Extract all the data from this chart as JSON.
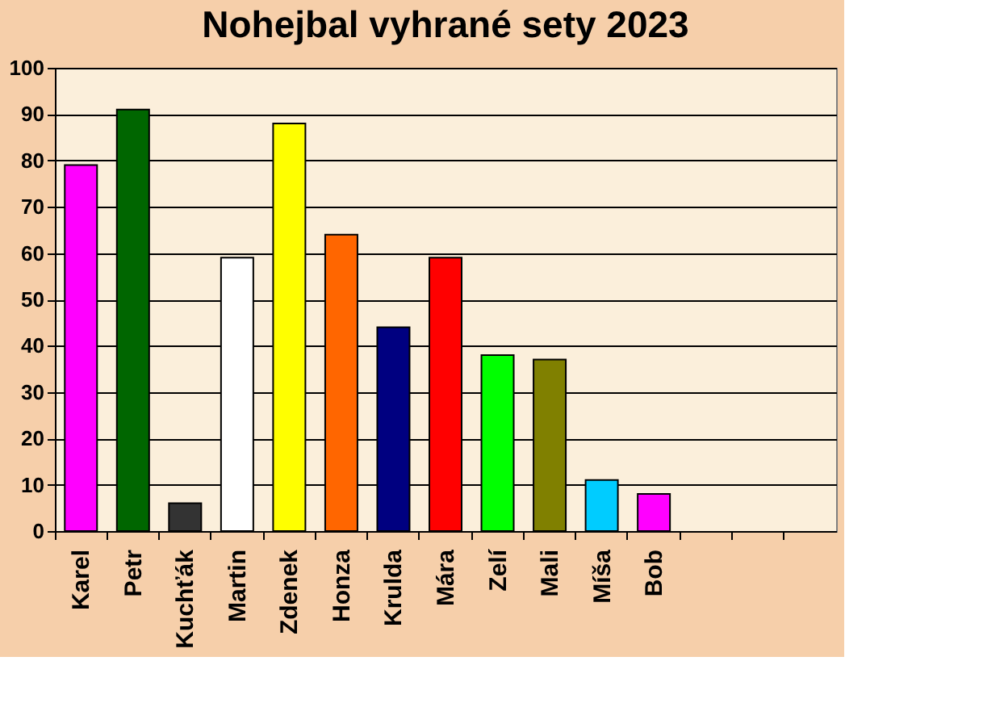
{
  "chart_data": {
    "type": "bar",
    "title": "Nohejbal vyhrané sety 2023",
    "categories": [
      "Karel",
      "Petr",
      "Kuchťák",
      "Martin",
      "Zdenek",
      "Honza",
      "Krulda",
      "Mára",
      "Zelí",
      "Mali",
      "Míša",
      "Bob",
      null,
      null,
      null
    ],
    "values": [
      79,
      91,
      6,
      59,
      88,
      64,
      44,
      59,
      38,
      37,
      11,
      8,
      null,
      null,
      null
    ],
    "colors": [
      "#ff00ff",
      "#006600",
      "#333333",
      "#ffffff",
      "#ffff00",
      "#ff6600",
      "#000080",
      "#ff0000",
      "#00ff00",
      "#808000",
      "#00ccff",
      "#ff00ff",
      "#000000",
      "#000000",
      "#000000"
    ],
    "ylim": [
      0,
      100
    ],
    "yticks": [
      0,
      10,
      20,
      30,
      40,
      50,
      60,
      70,
      80,
      90,
      100
    ],
    "grid": "y"
  }
}
